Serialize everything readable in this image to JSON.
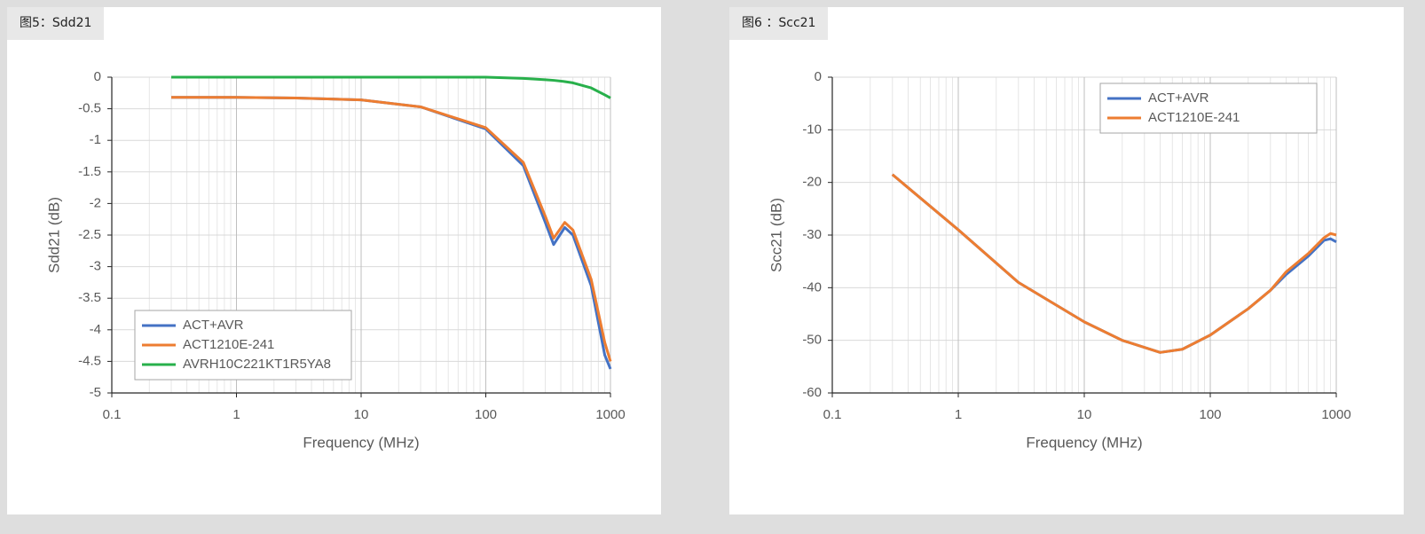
{
  "chart_data": [
    {
      "type": "line",
      "title": "图5：Sdd21",
      "x_label": "Frequency (MHz)",
      "y_label": "Sdd21 (dB)",
      "x": [
        0.3,
        1,
        3,
        10,
        30,
        100,
        200,
        300,
        350,
        430,
        500,
        700,
        900,
        1000
      ],
      "series": [
        {
          "name": "ACT+AVR",
          "color": "#4472c4",
          "values": [
            -0.32,
            -0.32,
            -0.33,
            -0.36,
            -0.47,
            -0.82,
            -1.4,
            -2.3,
            -2.65,
            -2.38,
            -2.5,
            -3.3,
            -4.4,
            -4.62
          ]
        },
        {
          "name": "ACT1210E-241",
          "color": "#ed7d31",
          "values": [
            -0.32,
            -0.32,
            -0.33,
            -0.36,
            -0.47,
            -0.8,
            -1.35,
            -2.2,
            -2.55,
            -2.3,
            -2.42,
            -3.2,
            -4.2,
            -4.5
          ]
        },
        {
          "name": "AVRH10C221KT1R5YA8",
          "color": "#28b04b",
          "values": [
            0,
            0,
            0,
            0,
            0,
            0,
            -0.02,
            -0.04,
            -0.05,
            -0.07,
            -0.09,
            -0.17,
            -0.28,
            -0.33
          ]
        }
      ],
      "xlim": [
        0.1,
        1000
      ],
      "xticks": [
        0.1,
        1,
        10,
        100,
        1000
      ],
      "x_log": true,
      "ylim": [
        -5,
        0
      ],
      "yticks": [
        0,
        -0.5,
        -1,
        -1.5,
        -2,
        -2.5,
        -3,
        -3.5,
        -4,
        -4.5,
        -5
      ],
      "grid": true,
      "legend": "lower left"
    },
    {
      "type": "line",
      "title": "图6 ：Scc21",
      "x_label": "Frequency (MHz)",
      "y_label": "Scc21 (dB)",
      "x": [
        0.3,
        1,
        3,
        10,
        20,
        40,
        60,
        100,
        200,
        300,
        400,
        600,
        800,
        900,
        1000
      ],
      "series": [
        {
          "name": "ACT+AVR",
          "color": "#4472c4",
          "values": [
            -18.5,
            -29,
            -39,
            -46.5,
            -50,
            -52.3,
            -51.7,
            -49,
            -44,
            -40.5,
            -37.5,
            -34,
            -31,
            -30.7,
            -31.3
          ]
        },
        {
          "name": "ACT1210E-241",
          "color": "#ed7d31",
          "values": [
            -18.5,
            -29,
            -39,
            -46.5,
            -50,
            -52.3,
            -51.7,
            -49,
            -44,
            -40.5,
            -37,
            -33.5,
            -30.5,
            -29.7,
            -30
          ]
        }
      ],
      "xlim": [
        0.1,
        1000
      ],
      "xticks": [
        0.1,
        1,
        10,
        100,
        1000
      ],
      "x_log": true,
      "ylim": [
        -60,
        0
      ],
      "yticks": [
        0,
        -10,
        -20,
        -30,
        -40,
        -50,
        -60
      ],
      "grid": true,
      "legend": "upper right"
    }
  ]
}
